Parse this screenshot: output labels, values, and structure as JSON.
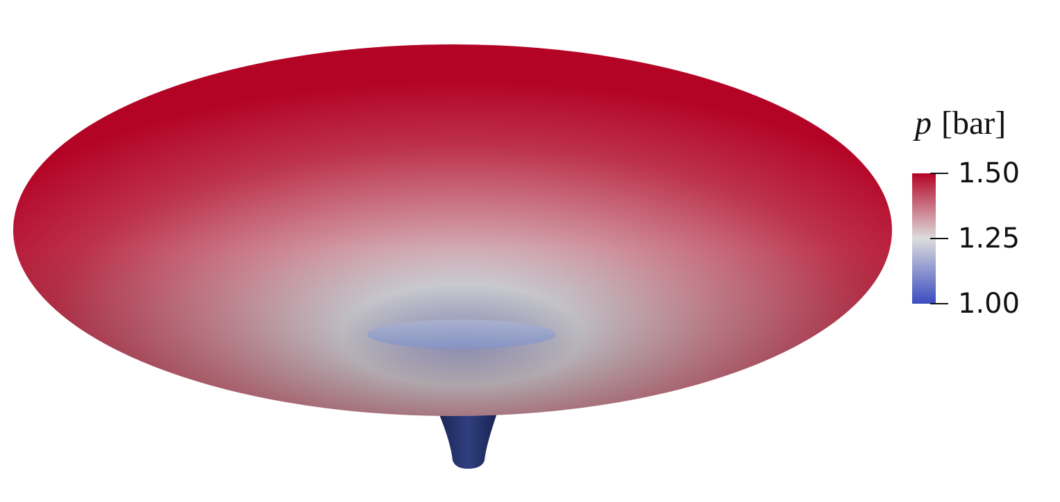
{
  "chart_data": {
    "type": "heatmap",
    "description_kind": "3d-surface",
    "colormap": "coolwarm",
    "colors": {
      "low": "#3b4cc0",
      "mid": "#dddddd",
      "high": "#b40426"
    },
    "colorbar": {
      "variable": "p",
      "unit": "[bar]",
      "range": [
        1.0,
        1.5
      ],
      "ticks": [
        {
          "value": 1.0,
          "label": "1.00"
        },
        {
          "value": 1.25,
          "label": "1.25"
        },
        {
          "value": 1.5,
          "label": "1.50"
        }
      ],
      "placement": "right"
    },
    "surface": {
      "outer_rim_value": 1.5,
      "inner_funnel_value": 1.15,
      "stem_value": 1.0
    }
  }
}
